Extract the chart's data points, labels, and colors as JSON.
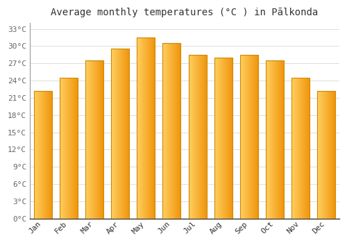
{
  "title": "Average monthly temperatures (°C ) in Pālkonda",
  "months": [
    "Jan",
    "Feb",
    "Mar",
    "Apr",
    "May",
    "Jun",
    "Jul",
    "Aug",
    "Sep",
    "Oct",
    "Nov",
    "Dec"
  ],
  "values": [
    22.2,
    24.5,
    27.5,
    29.5,
    31.5,
    30.5,
    28.5,
    28.0,
    28.5,
    27.5,
    24.5,
    22.2
  ],
  "bar_color_main": "#FFA500",
  "bar_color_highlight": "#FFD050",
  "bar_edge_color": "#CC8800",
  "background_color": "#FFFFFF",
  "grid_color": "#DDDDDD",
  "ytick_max": 33,
  "ytick_step": 3,
  "title_fontsize": 10,
  "tick_fontsize": 8,
  "figsize": [
    5.0,
    3.5
  ],
  "dpi": 100
}
